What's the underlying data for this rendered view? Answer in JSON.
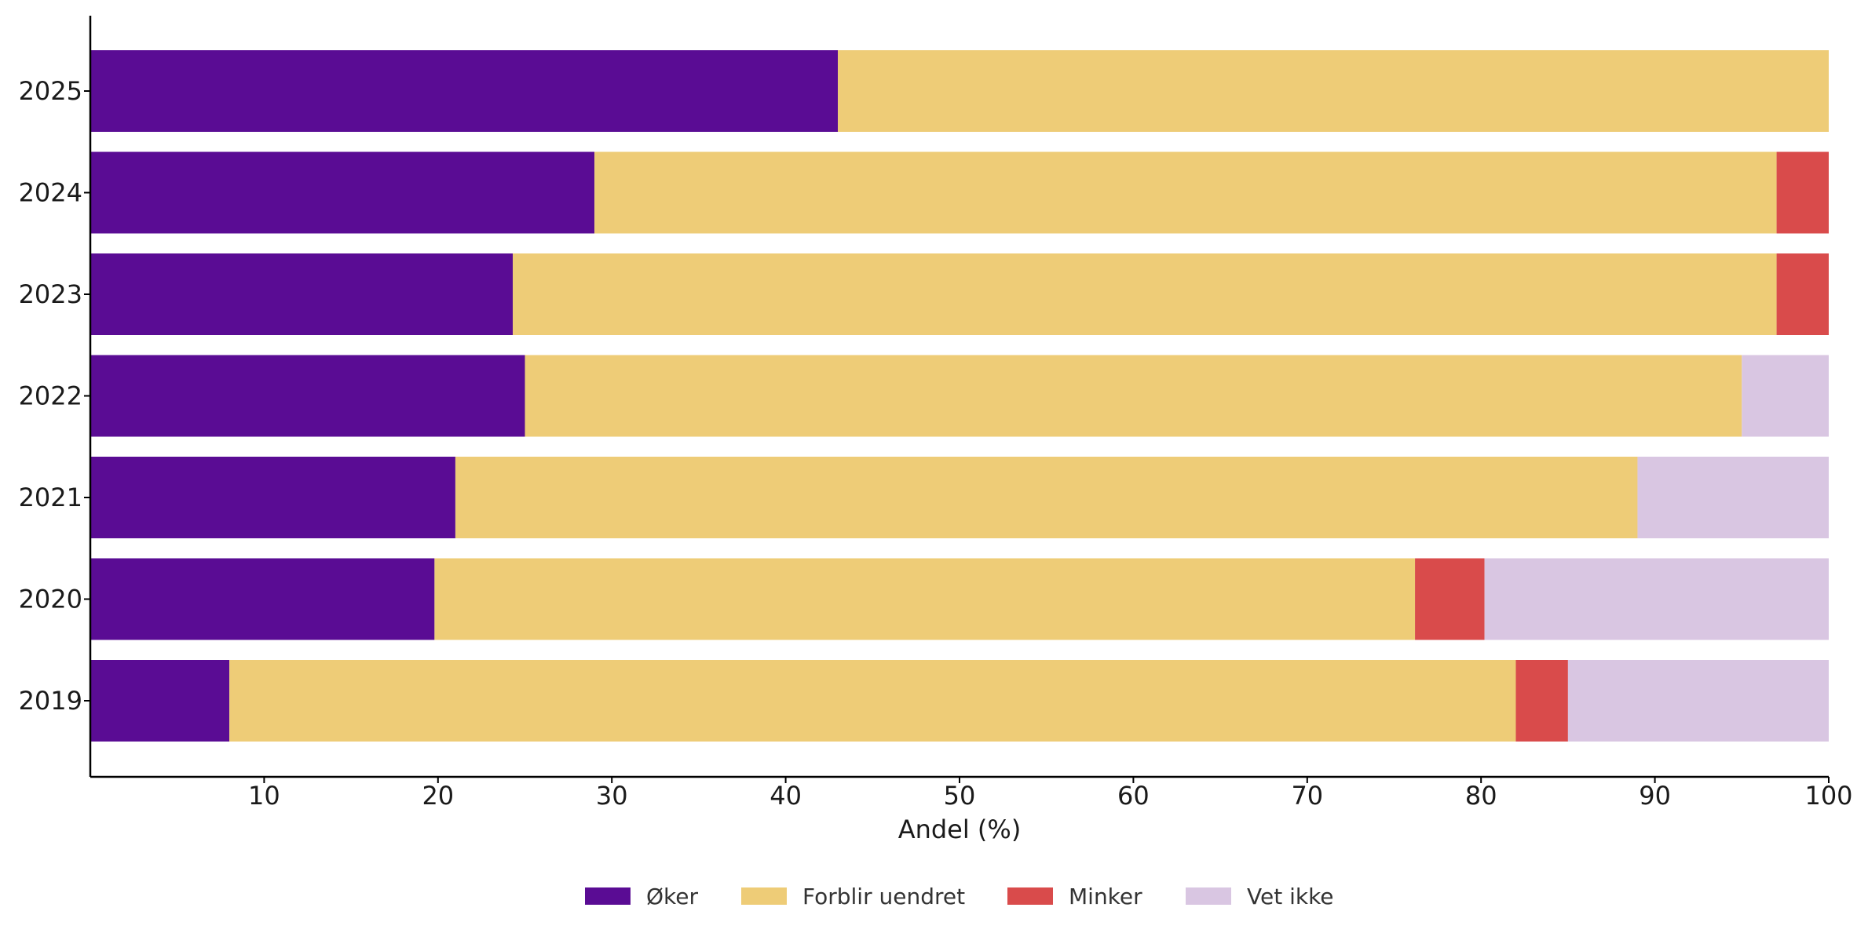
{
  "chart_data": {
    "type": "bar",
    "orientation": "horizontal",
    "stacked": true,
    "categories": [
      "2019",
      "2020",
      "2021",
      "2022",
      "2023",
      "2024",
      "2025"
    ],
    "series": [
      {
        "name": "Øker",
        "color": "#5a0c94",
        "values": [
          8,
          19.8,
          21,
          25,
          24.3,
          29,
          43
        ]
      },
      {
        "name": "Forblir uendret",
        "color": "#eecc77",
        "values": [
          74,
          56.4,
          68,
          70,
          72.7,
          68,
          57
        ]
      },
      {
        "name": "Minker",
        "color": "#d94b4b",
        "values": [
          3,
          4,
          0,
          0,
          3,
          3,
          0
        ]
      },
      {
        "name": "Vet ikke",
        "color": "#d9c6e2",
        "values": [
          15,
          19.8,
          11,
          5,
          0,
          0,
          0
        ]
      }
    ],
    "xlabel": "Andel (%)",
    "ylabel": "",
    "xlim": [
      0,
      100
    ],
    "xticks": [
      10,
      20,
      30,
      40,
      50,
      60,
      70,
      80,
      90,
      100
    ],
    "grid": false,
    "legend_position": "bottom-center"
  }
}
